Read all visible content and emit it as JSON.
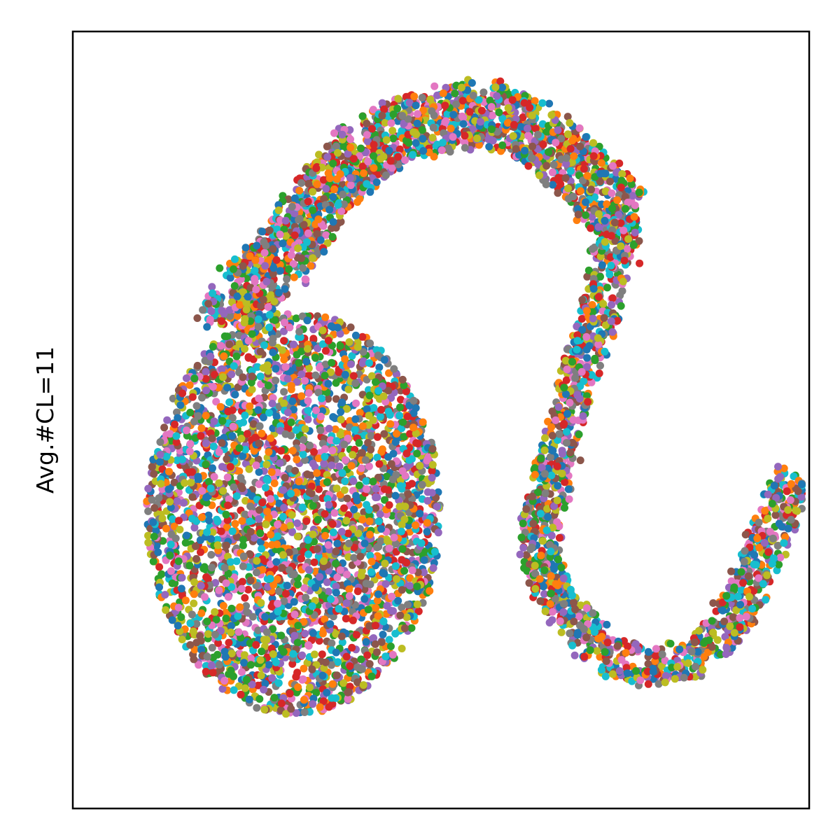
{
  "chart_data": {
    "type": "scatter",
    "title": "",
    "xlabel": "",
    "ylabel": "Avg.#CL=11",
    "xticks": [],
    "yticks": [],
    "grid": false,
    "legend": "none",
    "palette": [
      "#1f77b4",
      "#ff7f0e",
      "#2ca02c",
      "#d62728",
      "#9467bd",
      "#8c564b",
      "#e377c2",
      "#7f7f7f",
      "#bcbd22",
      "#17becf"
    ],
    "clusters": [
      {
        "name": "lower-left-blob",
        "cx": 0.3,
        "cy": 0.38,
        "rx": 0.2,
        "ry": 0.26,
        "points": 3400
      },
      {
        "name": "upper-arc",
        "path": [
          [
            0.21,
            0.62
          ],
          [
            0.22,
            0.66
          ],
          [
            0.28,
            0.7
          ],
          [
            0.33,
            0.78
          ],
          [
            0.4,
            0.85
          ],
          [
            0.47,
            0.88
          ],
          [
            0.55,
            0.9
          ],
          [
            0.63,
            0.87
          ],
          [
            0.7,
            0.81
          ],
          [
            0.75,
            0.76
          ]
        ],
        "width": 0.08,
        "points": 1900
      },
      {
        "name": "right-hook",
        "path": [
          [
            0.75,
            0.76
          ],
          [
            0.73,
            0.7
          ],
          [
            0.71,
            0.62
          ],
          [
            0.68,
            0.54
          ],
          [
            0.66,
            0.46
          ],
          [
            0.63,
            0.36
          ],
          [
            0.65,
            0.28
          ],
          [
            0.72,
            0.2
          ],
          [
            0.79,
            0.18
          ],
          [
            0.86,
            0.2
          ],
          [
            0.91,
            0.27
          ],
          [
            0.95,
            0.36
          ],
          [
            0.98,
            0.43
          ]
        ],
        "width": 0.05,
        "points": 1500
      }
    ]
  }
}
